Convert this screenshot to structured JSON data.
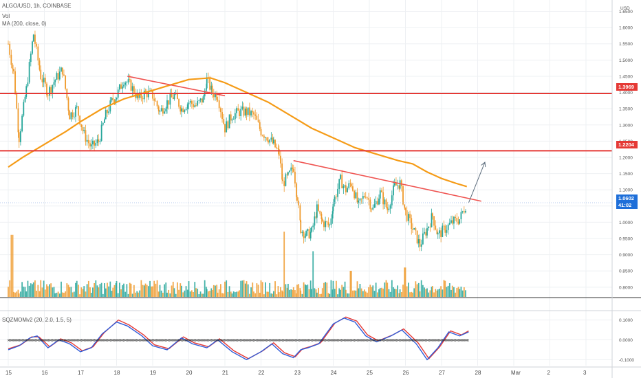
{
  "header": {
    "symbol": "ALGO/USD, 1h, COINBASE",
    "vol": "Vol",
    "ma": "MA (200, close, 0)",
    "currency": "USD"
  },
  "osc_header": "SQZMOMv2 (20, 2.0, 1.5, 5)",
  "colors": {
    "bull": "#26a69a",
    "bear": "#ef9a2c",
    "ma": "#f59b16",
    "level": "#e53935",
    "trend": "#ef5350",
    "arrow": "#5b6c7c",
    "osc_blue": "#2f5bd8",
    "osc_red": "#e53935",
    "current_tag": "#1e6fd9"
  },
  "chart_data": {
    "type": "candlestick",
    "title": "ALGO/USD, 1h, COINBASE",
    "y_axis": {
      "ticks": [
        "1.6500",
        "1.6000",
        "1.5500",
        "1.5000",
        "1.4500",
        "1.4000",
        "1.3500",
        "1.3000",
        "1.2500",
        "1.2000",
        "1.1500",
        "1.1000",
        "1.0500",
        "1.0000",
        "0.9500",
        "0.9000",
        "0.8500",
        "0.8000"
      ],
      "range": [
        0.77,
        1.685
      ]
    },
    "x_axis": {
      "ticks": [
        "15",
        "16",
        "17",
        "18",
        "19",
        "20",
        "21",
        "22",
        "23",
        "24",
        "25",
        "26",
        "27",
        "28",
        "Mar",
        "2",
        "3"
      ]
    },
    "price_path": [
      [
        15.0,
        1.55
      ],
      [
        15.15,
        1.46
      ],
      [
        15.3,
        1.26
      ],
      [
        15.5,
        1.41
      ],
      [
        15.7,
        1.58
      ],
      [
        15.9,
        1.45
      ],
      [
        16.1,
        1.4
      ],
      [
        16.3,
        1.44
      ],
      [
        16.5,
        1.47
      ],
      [
        16.7,
        1.33
      ],
      [
        16.9,
        1.35
      ],
      [
        17.1,
        1.27
      ],
      [
        17.3,
        1.23
      ],
      [
        17.5,
        1.25
      ],
      [
        17.7,
        1.33
      ],
      [
        17.9,
        1.38
      ],
      [
        18.0,
        1.39
      ],
      [
        18.2,
        1.44
      ],
      [
        18.4,
        1.42
      ],
      [
        18.6,
        1.38
      ],
      [
        18.8,
        1.4
      ],
      [
        19.0,
        1.39
      ],
      [
        19.2,
        1.34
      ],
      [
        19.4,
        1.37
      ],
      [
        19.6,
        1.39
      ],
      [
        19.8,
        1.35
      ],
      [
        20.0,
        1.37
      ],
      [
        20.2,
        1.36
      ],
      [
        20.4,
        1.38
      ],
      [
        20.5,
        1.44
      ],
      [
        20.65,
        1.4
      ],
      [
        20.8,
        1.39
      ],
      [
        21.0,
        1.29
      ],
      [
        21.2,
        1.33
      ],
      [
        21.4,
        1.34
      ],
      [
        21.6,
        1.34
      ],
      [
        21.8,
        1.33
      ],
      [
        22.0,
        1.28
      ],
      [
        22.2,
        1.26
      ],
      [
        22.35,
        1.24
      ],
      [
        22.5,
        1.21
      ],
      [
        22.6,
        1.12
      ],
      [
        22.75,
        1.14
      ],
      [
        22.9,
        1.17
      ],
      [
        23.0,
        1.08
      ],
      [
        23.1,
        0.98
      ],
      [
        23.25,
        0.96
      ],
      [
        23.4,
        0.97
      ],
      [
        23.55,
        1.04
      ],
      [
        23.7,
        1.0
      ],
      [
        23.9,
        0.99
      ],
      [
        24.0,
        1.06
      ],
      [
        24.2,
        1.13
      ],
      [
        24.35,
        1.1
      ],
      [
        24.5,
        1.12
      ],
      [
        24.7,
        1.05
      ],
      [
        24.9,
        1.09
      ],
      [
        25.1,
        1.04
      ],
      [
        25.3,
        1.09
      ],
      [
        25.5,
        1.04
      ],
      [
        25.7,
        1.11
      ],
      [
        25.85,
        1.12
      ],
      [
        26.0,
        1.03
      ],
      [
        26.2,
        0.98
      ],
      [
        26.4,
        0.93
      ],
      [
        26.6,
        0.98
      ],
      [
        26.75,
        1.02
      ],
      [
        26.9,
        0.96
      ],
      [
        27.1,
        0.98
      ],
      [
        27.3,
        1.0
      ],
      [
        27.5,
        1.01
      ],
      [
        27.7,
        1.06
      ]
    ],
    "ma200": [
      [
        15.0,
        1.17
      ],
      [
        15.4,
        1.2
      ],
      [
        16.0,
        1.24
      ],
      [
        16.6,
        1.28
      ],
      [
        17.0,
        1.31
      ],
      [
        17.6,
        1.35
      ],
      [
        18.2,
        1.38
      ],
      [
        18.8,
        1.4
      ],
      [
        19.4,
        1.42
      ],
      [
        20.0,
        1.44
      ],
      [
        20.6,
        1.445
      ],
      [
        21.0,
        1.43
      ],
      [
        21.6,
        1.4
      ],
      [
        22.2,
        1.37
      ],
      [
        22.8,
        1.33
      ],
      [
        23.4,
        1.29
      ],
      [
        24.0,
        1.26
      ],
      [
        24.6,
        1.23
      ],
      [
        25.2,
        1.21
      ],
      [
        25.8,
        1.19
      ],
      [
        26.2,
        1.18
      ],
      [
        26.6,
        1.155
      ],
      [
        27.0,
        1.135
      ],
      [
        27.4,
        1.12
      ],
      [
        27.7,
        1.11
      ]
    ],
    "horizontal_levels": [
      {
        "price": 1.3969,
        "label": "1.3969"
      },
      {
        "price": 1.2204,
        "label": "1.2204"
      }
    ],
    "trendlines": [
      {
        "from": [
          18.3,
          1.45
        ],
        "to": [
          21.0,
          1.39
        ]
      },
      {
        "from": [
          22.9,
          1.19
        ],
        "to": [
          28.1,
          1.065
        ]
      }
    ],
    "projection_arrow": {
      "from": [
        27.75,
        1.06
      ],
      "to": [
        28.2,
        1.185
      ]
    },
    "current_price": {
      "value": "1.0602",
      "countdown": "41:02"
    },
    "volume_spikes": [
      [
        15.1,
        0.95
      ],
      [
        22.65,
        1.0
      ],
      [
        23.45,
        0.7
      ],
      [
        26.0,
        0.45
      ],
      [
        24.5,
        0.4
      ]
    ],
    "oscillator": {
      "name": "SQZMOMv2",
      "ticks": [
        "0.1000",
        "0.0000",
        "-0.1000"
      ],
      "range": [
        -0.13,
        0.13
      ],
      "blue": [
        [
          15.0,
          -0.05
        ],
        [
          15.3,
          -0.03
        ],
        [
          15.6,
          0.01
        ],
        [
          15.8,
          0.02
        ],
        [
          16.1,
          -0.04
        ],
        [
          16.4,
          0.0
        ],
        [
          16.7,
          -0.02
        ],
        [
          17.0,
          -0.06
        ],
        [
          17.3,
          -0.04
        ],
        [
          17.6,
          0.03
        ],
        [
          18.0,
          0.09
        ],
        [
          18.3,
          0.07
        ],
        [
          18.7,
          0.02
        ],
        [
          19.0,
          -0.03
        ],
        [
          19.4,
          -0.05
        ],
        [
          19.8,
          0.01
        ],
        [
          20.1,
          -0.02
        ],
        [
          20.5,
          -0.04
        ],
        [
          20.8,
          0.0
        ],
        [
          21.2,
          -0.06
        ],
        [
          21.6,
          -0.1
        ],
        [
          22.0,
          -0.06
        ],
        [
          22.3,
          -0.02
        ],
        [
          22.6,
          -0.07
        ],
        [
          22.9,
          -0.09
        ],
        [
          23.1,
          -0.05
        ],
        [
          23.3,
          -0.04
        ],
        [
          23.6,
          -0.02
        ],
        [
          24.0,
          0.08
        ],
        [
          24.3,
          0.11
        ],
        [
          24.6,
          0.09
        ],
        [
          24.9,
          0.02
        ],
        [
          25.2,
          -0.01
        ],
        [
          25.6,
          0.02
        ],
        [
          25.9,
          0.05
        ],
        [
          26.3,
          -0.02
        ],
        [
          26.6,
          -0.1
        ],
        [
          26.9,
          -0.04
        ],
        [
          27.2,
          0.04
        ],
        [
          27.5,
          0.02
        ],
        [
          27.75,
          0.04
        ]
      ],
      "red": [
        [
          15.0,
          -0.045
        ],
        [
          15.35,
          -0.025
        ],
        [
          15.65,
          0.015
        ],
        [
          15.85,
          0.015
        ],
        [
          16.15,
          -0.035
        ],
        [
          16.45,
          0.005
        ],
        [
          16.75,
          -0.015
        ],
        [
          17.05,
          -0.055
        ],
        [
          17.35,
          -0.035
        ],
        [
          17.65,
          0.035
        ],
        [
          18.05,
          0.1
        ],
        [
          18.35,
          0.075
        ],
        [
          18.75,
          0.025
        ],
        [
          19.05,
          -0.025
        ],
        [
          19.45,
          -0.045
        ],
        [
          19.85,
          0.015
        ],
        [
          20.15,
          -0.015
        ],
        [
          20.55,
          -0.035
        ],
        [
          20.85,
          0.005
        ],
        [
          21.25,
          -0.055
        ],
        [
          21.65,
          -0.095
        ],
        [
          22.05,
          -0.055
        ],
        [
          22.35,
          -0.015
        ],
        [
          22.65,
          -0.065
        ],
        [
          22.95,
          -0.085
        ],
        [
          23.15,
          -0.045
        ],
        [
          23.35,
          -0.035
        ],
        [
          23.65,
          -0.015
        ],
        [
          24.05,
          0.085
        ],
        [
          24.35,
          0.115
        ],
        [
          24.65,
          0.095
        ],
        [
          24.95,
          0.025
        ],
        [
          25.25,
          -0.005
        ],
        [
          25.65,
          0.025
        ],
        [
          25.95,
          0.055
        ],
        [
          26.35,
          -0.015
        ],
        [
          26.65,
          -0.095
        ],
        [
          26.95,
          -0.035
        ],
        [
          27.25,
          0.045
        ],
        [
          27.55,
          0.025
        ],
        [
          27.75,
          0.045
        ]
      ]
    }
  }
}
